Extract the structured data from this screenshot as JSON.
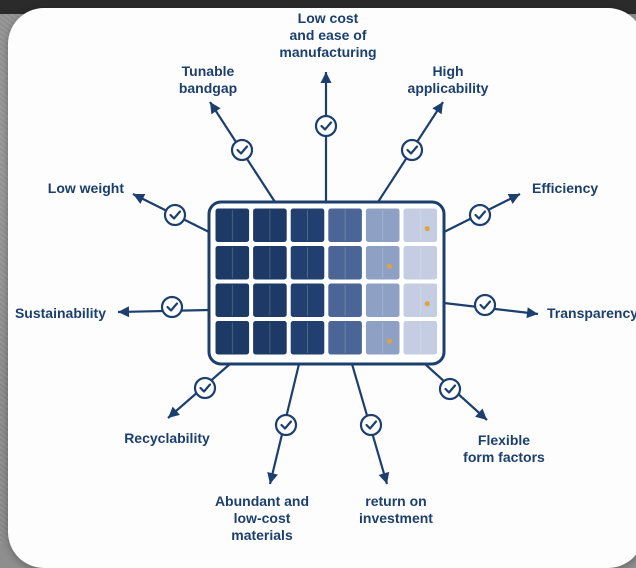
{
  "colors": {
    "accent": "#1c3f6e",
    "panel_light": "#c8d2e6",
    "cell_dark": "#1d3a66",
    "highlight": "#e0a23a"
  },
  "icons": {
    "check": "check-circle-icon",
    "arrow": "arrow-head-icon"
  },
  "labels": {
    "low_cost": [
      "Low cost",
      "and ease of",
      "manufacturing"
    ],
    "tunable_bandgap": [
      "Tunable",
      "bandgap"
    ],
    "high_applicability": [
      "High",
      "applicability"
    ],
    "low_weight": "Low weight",
    "efficiency": "Efficiency",
    "sustainability": "Sustainability",
    "transparency": "Transparency",
    "recyclability": "Recyclability",
    "flexible_form_factors": [
      "Flexible",
      "form factors"
    ],
    "abundant_materials": [
      "Abundant and",
      "low-cost",
      "materials"
    ],
    "return_on_investment": [
      "return on",
      "investment"
    ]
  }
}
